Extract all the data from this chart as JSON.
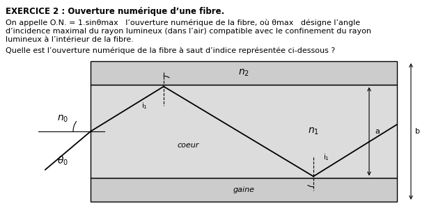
{
  "title": "EXERCICE 2 : Ouverture numérique d’une fibre.",
  "para1_line1": "On appelle O.N. = 1.sinθmax   l’ouverture numérique de la fibre, où θmax   désigne l’angle",
  "para1_line2": "d’incidence maximal du rayon lumineux (dans l’air) compatible avec le confinement du rayon",
  "para1_line3": "lumineux à l’intérieur de la fibre.",
  "para2": "Quelle est l’ouverture numérique de la fibre à saut d’indice représentée ci-dessous ?",
  "color_cladding": "#cccccc",
  "color_core": "#dcdcdc",
  "color_gaine": "#cccccc",
  "color_line": "#000000",
  "fontsize_text": 8.0,
  "fontsize_title": 8.5,
  "fontsize_label": 10.0,
  "fontsize_small": 7.5
}
